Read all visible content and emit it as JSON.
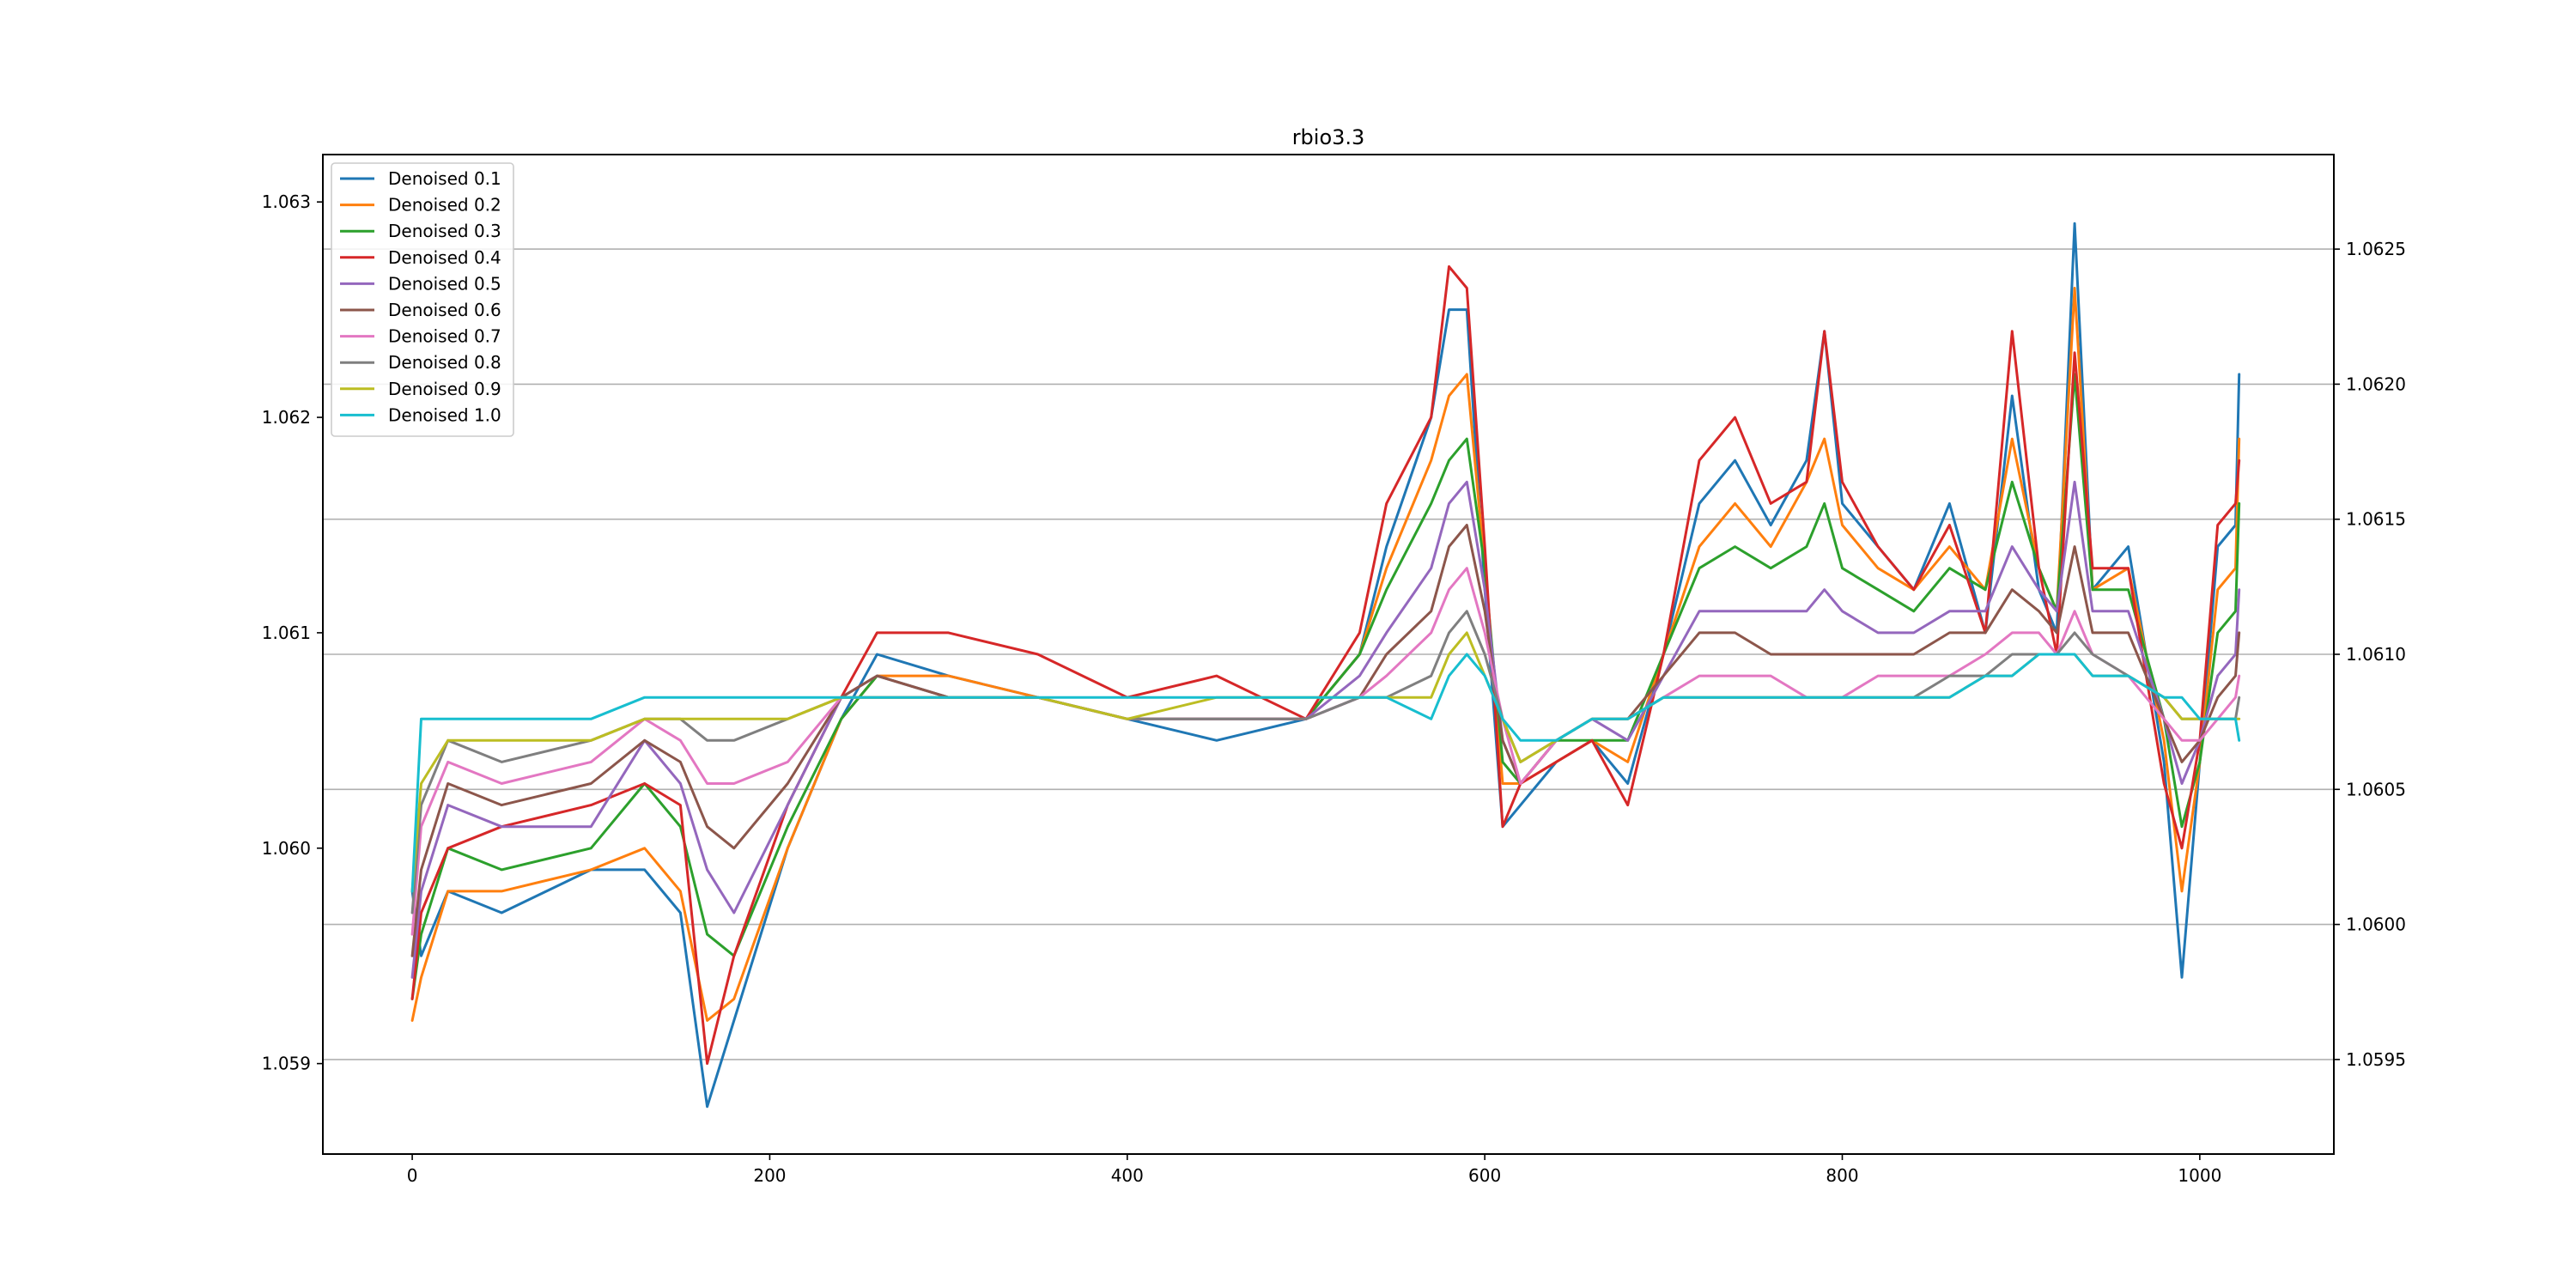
{
  "chart_data": {
    "type": "line",
    "title": "rbio3.3",
    "xlabel": "",
    "ylabel": "",
    "xlim": [
      -50,
      1075
    ],
    "ylim_left": [
      1.05858,
      1.06322
    ],
    "ylim_right": [
      1.05915,
      1.06285
    ],
    "x_ticks": [
      0,
      200,
      400,
      600,
      800,
      1000
    ],
    "x_tick_labels": [
      "0",
      "200",
      "400",
      "600",
      "800",
      "1000"
    ],
    "y_ticks_left": [
      1.059,
      1.06,
      1.061,
      1.062,
      1.063
    ],
    "y_tick_labels_left": [
      "1.059",
      "1.060",
      "1.061",
      "1.062",
      "1.063"
    ],
    "y_ticks_right": [
      1.0595,
      1.06,
      1.0605,
      1.061,
      1.0615,
      1.062,
      1.0625
    ],
    "y_tick_labels_right": [
      "1.0595",
      "1.0600",
      "1.0605",
      "1.0610",
      "1.0615",
      "1.0620",
      "1.0625"
    ],
    "grid": "horizontal lines at right-axis ticks",
    "legend_position": "top-left",
    "x": [
      0,
      5,
      20,
      50,
      100,
      130,
      150,
      165,
      180,
      210,
      240,
      260,
      300,
      350,
      400,
      450,
      500,
      530,
      545,
      570,
      580,
      590,
      600,
      610,
      620,
      640,
      660,
      680,
      700,
      720,
      740,
      760,
      780,
      790,
      800,
      820,
      840,
      860,
      880,
      895,
      910,
      920,
      930,
      940,
      960,
      980,
      990,
      1000,
      1010,
      1020,
      1022
    ],
    "series": [
      {
        "name": "Denoised 0.1",
        "color": "#1f77b4",
        "values": [
          1.0598,
          1.0595,
          1.0598,
          1.0597,
          1.0599,
          1.0599,
          1.0597,
          1.0588,
          1.0592,
          1.06,
          1.0606,
          1.0609,
          1.0608,
          1.0607,
          1.0606,
          1.0605,
          1.0606,
          1.0609,
          1.0614,
          1.062,
          1.0625,
          1.0625,
          1.0612,
          1.0601,
          1.0602,
          1.0604,
          1.0605,
          1.0603,
          1.0609,
          1.0616,
          1.0618,
          1.0615,
          1.0618,
          1.0624,
          1.0616,
          1.0614,
          1.0612,
          1.0616,
          1.061,
          1.0621,
          1.0612,
          1.061,
          1.0629,
          1.0612,
          1.0614,
          1.0604,
          1.0594,
          1.0604,
          1.0614,
          1.0615,
          1.0622
        ]
      },
      {
        "name": "Denoised 0.2",
        "color": "#ff7f0e",
        "values": [
          1.0592,
          1.0594,
          1.0598,
          1.0598,
          1.0599,
          1.06,
          1.0598,
          1.0592,
          1.0593,
          1.06,
          1.0606,
          1.0608,
          1.0608,
          1.0607,
          1.0606,
          1.0606,
          1.0606,
          1.0609,
          1.0613,
          1.0618,
          1.0621,
          1.0622,
          1.0613,
          1.0603,
          1.0603,
          1.0604,
          1.0605,
          1.0604,
          1.0609,
          1.0614,
          1.0616,
          1.0614,
          1.0617,
          1.0619,
          1.0615,
          1.0613,
          1.0612,
          1.0614,
          1.0612,
          1.0619,
          1.0613,
          1.0611,
          1.0626,
          1.0612,
          1.0613,
          1.0605,
          1.0598,
          1.0604,
          1.0612,
          1.0613,
          1.0619
        ]
      },
      {
        "name": "Denoised 0.3",
        "color": "#2ca02c",
        "values": [
          1.0593,
          1.0596,
          1.06,
          1.0599,
          1.06,
          1.0603,
          1.0601,
          1.0596,
          1.0595,
          1.0601,
          1.0606,
          1.0608,
          1.0607,
          1.0607,
          1.0606,
          1.0606,
          1.0606,
          1.0609,
          1.0612,
          1.0616,
          1.0618,
          1.0619,
          1.0613,
          1.0604,
          1.0603,
          1.0605,
          1.0605,
          1.0605,
          1.0609,
          1.0613,
          1.0614,
          1.0613,
          1.0614,
          1.0616,
          1.0613,
          1.0612,
          1.0611,
          1.0613,
          1.0612,
          1.0617,
          1.0613,
          1.0611,
          1.0622,
          1.0612,
          1.0612,
          1.0606,
          1.0601,
          1.0604,
          1.061,
          1.0611,
          1.0616
        ]
      },
      {
        "name": "Denoised 0.4",
        "color": "#d62728",
        "values": [
          1.0593,
          1.0597,
          1.06,
          1.0601,
          1.0602,
          1.0603,
          1.0602,
          1.059,
          1.0595,
          1.0602,
          1.0607,
          1.061,
          1.061,
          1.0609,
          1.0607,
          1.0608,
          1.0606,
          1.061,
          1.0616,
          1.062,
          1.0627,
          1.0626,
          1.0614,
          1.0601,
          1.0603,
          1.0604,
          1.0605,
          1.0602,
          1.0609,
          1.0618,
          1.062,
          1.0616,
          1.0617,
          1.0624,
          1.0617,
          1.0614,
          1.0612,
          1.0615,
          1.061,
          1.0624,
          1.0613,
          1.0609,
          1.0623,
          1.0613,
          1.0613,
          1.0603,
          1.06,
          1.0605,
          1.0615,
          1.0616,
          1.0618
        ]
      },
      {
        "name": "Denoised 0.5",
        "color": "#9467bd",
        "values": [
          1.0594,
          1.0598,
          1.0602,
          1.0601,
          1.0601,
          1.0605,
          1.0603,
          1.0599,
          1.0597,
          1.0602,
          1.0607,
          1.0608,
          1.0607,
          1.0607,
          1.0606,
          1.0606,
          1.0606,
          1.0608,
          1.061,
          1.0613,
          1.0616,
          1.0617,
          1.0612,
          1.0605,
          1.0603,
          1.0605,
          1.0606,
          1.0605,
          1.0608,
          1.0611,
          1.0611,
          1.0611,
          1.0611,
          1.0612,
          1.0611,
          1.061,
          1.061,
          1.0611,
          1.0611,
          1.0614,
          1.0612,
          1.0611,
          1.0617,
          1.0611,
          1.0611,
          1.0606,
          1.0603,
          1.0605,
          1.0608,
          1.0609,
          1.0612
        ]
      },
      {
        "name": "Denoised 0.6",
        "color": "#8c564b",
        "values": [
          1.0595,
          1.0599,
          1.0603,
          1.0602,
          1.0603,
          1.0605,
          1.0604,
          1.0601,
          1.06,
          1.0603,
          1.0607,
          1.0608,
          1.0607,
          1.0607,
          1.0606,
          1.0606,
          1.0606,
          1.0607,
          1.0609,
          1.0611,
          1.0614,
          1.0615,
          1.0611,
          1.0605,
          1.0603,
          1.0605,
          1.0606,
          1.0606,
          1.0608,
          1.061,
          1.061,
          1.0609,
          1.0609,
          1.0609,
          1.0609,
          1.0609,
          1.0609,
          1.061,
          1.061,
          1.0612,
          1.0611,
          1.061,
          1.0614,
          1.061,
          1.061,
          1.0606,
          1.0604,
          1.0605,
          1.0607,
          1.0608,
          1.061
        ]
      },
      {
        "name": "Denoised 0.7",
        "color": "#e377c2",
        "values": [
          1.0596,
          1.0601,
          1.0604,
          1.0603,
          1.0604,
          1.0606,
          1.0605,
          1.0603,
          1.0603,
          1.0604,
          1.0607,
          1.0607,
          1.0607,
          1.0607,
          1.0606,
          1.0606,
          1.0606,
          1.0607,
          1.0608,
          1.061,
          1.0612,
          1.0613,
          1.061,
          1.0606,
          1.0603,
          1.0605,
          1.0606,
          1.0606,
          1.0607,
          1.0608,
          1.0608,
          1.0608,
          1.0607,
          1.0607,
          1.0607,
          1.0608,
          1.0608,
          1.0608,
          1.0609,
          1.061,
          1.061,
          1.0609,
          1.0611,
          1.0609,
          1.0608,
          1.0606,
          1.0605,
          1.0605,
          1.0606,
          1.0607,
          1.0608
        ]
      },
      {
        "name": "Denoised 0.8",
        "color": "#7f7f7f",
        "values": [
          1.0597,
          1.0602,
          1.0605,
          1.0604,
          1.0605,
          1.0606,
          1.0606,
          1.0605,
          1.0605,
          1.0606,
          1.0607,
          1.0607,
          1.0607,
          1.0607,
          1.0606,
          1.0606,
          1.0606,
          1.0607,
          1.0607,
          1.0608,
          1.061,
          1.0611,
          1.0609,
          1.0606,
          1.0604,
          1.0605,
          1.0606,
          1.0606,
          1.0607,
          1.0607,
          1.0607,
          1.0607,
          1.0607,
          1.0607,
          1.0607,
          1.0607,
          1.0607,
          1.0608,
          1.0608,
          1.0609,
          1.0609,
          1.0609,
          1.061,
          1.0609,
          1.0608,
          1.0607,
          1.0606,
          1.0606,
          1.0606,
          1.0606,
          1.0607
        ]
      },
      {
        "name": "Denoised 0.9",
        "color": "#bcbd22",
        "values": [
          1.0598,
          1.0603,
          1.0605,
          1.0605,
          1.0605,
          1.0606,
          1.0606,
          1.0606,
          1.0606,
          1.0606,
          1.0607,
          1.0607,
          1.0607,
          1.0607,
          1.0606,
          1.0607,
          1.0607,
          1.0607,
          1.0607,
          1.0607,
          1.0609,
          1.061,
          1.0608,
          1.0606,
          1.0604,
          1.0605,
          1.0606,
          1.0606,
          1.0607,
          1.0607,
          1.0607,
          1.0607,
          1.0607,
          1.0607,
          1.0607,
          1.0607,
          1.0607,
          1.0607,
          1.0608,
          1.0608,
          1.0609,
          1.0609,
          1.0609,
          1.0608,
          1.0608,
          1.0607,
          1.0606,
          1.0606,
          1.0606,
          1.0606,
          1.0606
        ]
      },
      {
        "name": "Denoised 1.0",
        "color": "#17becf",
        "values": [
          1.0598,
          1.0606,
          1.0606,
          1.0606,
          1.0606,
          1.0607,
          1.0607,
          1.0607,
          1.0607,
          1.0607,
          1.0607,
          1.0607,
          1.0607,
          1.0607,
          1.0607,
          1.0607,
          1.0607,
          1.0607,
          1.0607,
          1.0606,
          1.0608,
          1.0609,
          1.0608,
          1.0606,
          1.0605,
          1.0605,
          1.0606,
          1.0606,
          1.0607,
          1.0607,
          1.0607,
          1.0607,
          1.0607,
          1.0607,
          1.0607,
          1.0607,
          1.0607,
          1.0607,
          1.0608,
          1.0608,
          1.0609,
          1.0609,
          1.0609,
          1.0608,
          1.0608,
          1.0607,
          1.0607,
          1.0606,
          1.0606,
          1.0606,
          1.0605
        ]
      }
    ]
  }
}
